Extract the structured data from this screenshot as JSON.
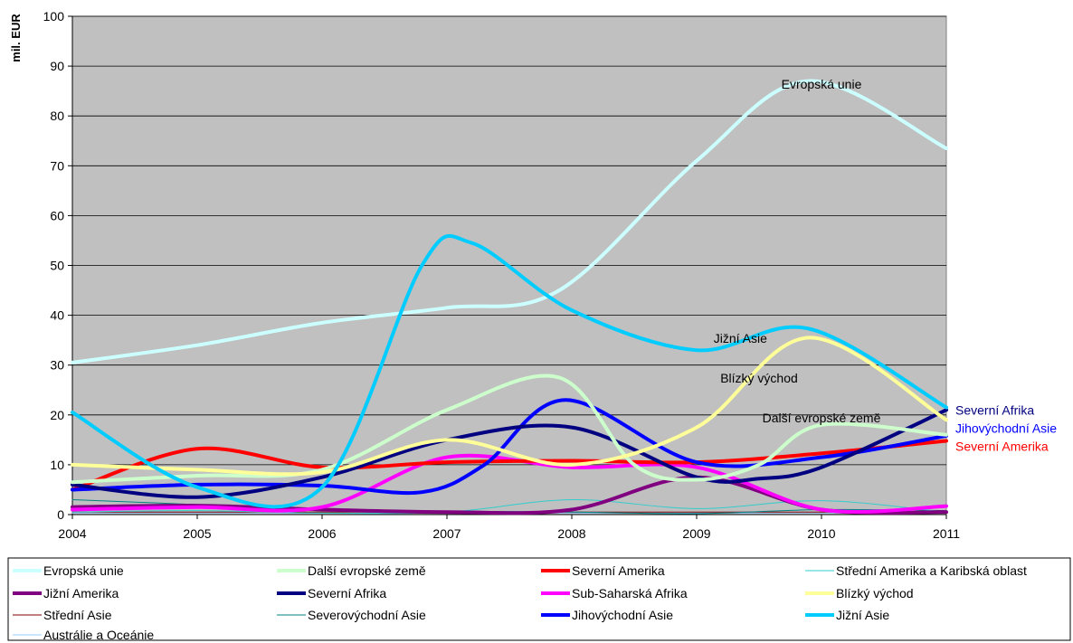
{
  "chart_data": {
    "type": "line",
    "title": "",
    "xlabel": "",
    "ylabel": "mil. EUR",
    "x": [
      "2004",
      "2005",
      "2006",
      "2007",
      "2008",
      "2009",
      "2010",
      "2011"
    ],
    "yticks": [
      "0",
      "10",
      "20",
      "30",
      "40",
      "50",
      "60",
      "70",
      "80",
      "90",
      "100"
    ],
    "ylim": [
      0,
      100
    ],
    "xlim": [
      2004,
      2011
    ],
    "grid": "horizontal",
    "legend_position": "bottom",
    "background_color": "#C0C0C0",
    "series": [
      {
        "name": "Evropská unie",
        "color": "#CCFFFF",
        "width": 4,
        "points": [
          [
            2004,
            30.5
          ],
          [
            2005,
            34
          ],
          [
            2006,
            38.5
          ],
          [
            2007,
            41.5
          ],
          [
            2007.9,
            45
          ],
          [
            2009,
            71
          ],
          [
            2009.9,
            87
          ],
          [
            2011,
            73.5
          ]
        ]
      },
      {
        "name": "Další evropské země",
        "color": "#CCFFCC",
        "width": 4,
        "points": [
          [
            2004,
            6.5
          ],
          [
            2005,
            7.8
          ],
          [
            2006,
            9
          ],
          [
            2007,
            21
          ],
          [
            2007.9,
            27.5
          ],
          [
            2008.5,
            10
          ],
          [
            2009,
            7
          ],
          [
            2009.5,
            10
          ],
          [
            2010,
            18
          ],
          [
            2011,
            16
          ]
        ]
      },
      {
        "name": "Severní Amerika",
        "color": "#FF0000",
        "width": 4,
        "points": [
          [
            2004,
            5
          ],
          [
            2005,
            13.2
          ],
          [
            2006,
            9.5
          ],
          [
            2007,
            10.5
          ],
          [
            2008,
            10.8
          ],
          [
            2009,
            10.5
          ],
          [
            2010,
            12.3
          ],
          [
            2011,
            14.8
          ]
        ]
      },
      {
        "name": "Střední Amerika a Karibská oblast",
        "color": "#33CCCC",
        "width": 1,
        "points": [
          [
            2004,
            0.5
          ],
          [
            2005,
            0.8
          ],
          [
            2006,
            0.3
          ],
          [
            2007,
            0.5
          ],
          [
            2008,
            3
          ],
          [
            2009,
            1.2
          ],
          [
            2010,
            2.8
          ],
          [
            2011,
            0.5
          ]
        ]
      },
      {
        "name": "Jižní Amerika",
        "color": "#800080",
        "width": 4,
        "points": [
          [
            2004,
            1.5
          ],
          [
            2005,
            1.8
          ],
          [
            2006,
            1
          ],
          [
            2007,
            0.5
          ],
          [
            2008,
            1
          ],
          [
            2009,
            7.5
          ],
          [
            2010,
            1
          ],
          [
            2011,
            0.5
          ]
        ]
      },
      {
        "name": "Severní Afrika",
        "color": "#000080",
        "width": 4,
        "points": [
          [
            2004,
            6
          ],
          [
            2005,
            3.5
          ],
          [
            2006,
            7.5
          ],
          [
            2007,
            15
          ],
          [
            2008,
            17.5
          ],
          [
            2009,
            7.5
          ],
          [
            2009.5,
            7.2
          ],
          [
            2010,
            9.5
          ],
          [
            2011,
            21
          ]
        ]
      },
      {
        "name": "Sub-Saharská Afrika",
        "color": "#FF00FF",
        "width": 4,
        "points": [
          [
            2004,
            1
          ],
          [
            2005,
            1.5
          ],
          [
            2006,
            1.5
          ],
          [
            2007,
            11.5
          ],
          [
            2008,
            9.5
          ],
          [
            2009,
            9.5
          ],
          [
            2010,
            1
          ],
          [
            2011,
            1.7
          ]
        ]
      },
      {
        "name": "Blízký východ",
        "color": "#FFFF99",
        "width": 4,
        "points": [
          [
            2004,
            10
          ],
          [
            2005,
            9
          ],
          [
            2006,
            8.5
          ],
          [
            2007,
            15
          ],
          [
            2008,
            10
          ],
          [
            2009,
            17.5
          ],
          [
            2009.9,
            35.5
          ],
          [
            2011,
            19
          ]
        ]
      },
      {
        "name": "Střední Asie",
        "color": "#800000",
        "width": 1,
        "points": [
          [
            2004,
            0.5
          ],
          [
            2005,
            0.5
          ],
          [
            2006,
            0.5
          ],
          [
            2007,
            0.5
          ],
          [
            2008,
            0.5
          ],
          [
            2009,
            0.5
          ],
          [
            2010,
            0.5
          ],
          [
            2011,
            0.5
          ]
        ]
      },
      {
        "name": "Severovýchodní Asie",
        "color": "#008080",
        "width": 1,
        "points": [
          [
            2004,
            3
          ],
          [
            2005,
            2
          ],
          [
            2006,
            1
          ],
          [
            2007,
            0.7
          ],
          [
            2008,
            0.5
          ],
          [
            2009,
            0.2
          ],
          [
            2010,
            1
          ],
          [
            2011,
            0.8
          ]
        ]
      },
      {
        "name": "Jihovýchodní Asie",
        "color": "#0000FF",
        "width": 4,
        "points": [
          [
            2004,
            5
          ],
          [
            2005,
            6
          ],
          [
            2006,
            5.8
          ],
          [
            2006.8,
            4.5
          ],
          [
            2007.3,
            10
          ],
          [
            2007.95,
            23
          ],
          [
            2009,
            10.5
          ],
          [
            2010,
            11.5
          ],
          [
            2011,
            15.8
          ]
        ]
      },
      {
        "name": "Jižní Asie",
        "color": "#00CCFF",
        "width": 4,
        "points": [
          [
            2004,
            20.5
          ],
          [
            2005,
            5.5
          ],
          [
            2006,
            5.5
          ],
          [
            2006.8,
            50
          ],
          [
            2007.2,
            54.5
          ],
          [
            2008,
            41
          ],
          [
            2009,
            33
          ],
          [
            2009.9,
            37.3
          ],
          [
            2011,
            21.5
          ]
        ]
      },
      {
        "name": "Austrálie a Oceánie",
        "color": "#99CCFF",
        "width": 1,
        "points": [
          [
            2004,
            0.3
          ],
          [
            2005,
            0.3
          ],
          [
            2006,
            0.3
          ],
          [
            2007,
            0.3
          ],
          [
            2008,
            0.3
          ],
          [
            2009,
            0.3
          ],
          [
            2010,
            0.3
          ],
          [
            2011,
            0.3
          ]
        ]
      }
    ],
    "annotations": [
      {
        "text": "Evropská unie",
        "x": 2010.0,
        "y": 85.5,
        "color": "#000000",
        "anchor": "middle"
      },
      {
        "text": "Jižní Asie",
        "x": 2009.35,
        "y": 34.5,
        "color": "#000000",
        "anchor": "middle"
      },
      {
        "text": "Blízký východ",
        "x": 2009.5,
        "y": 26.5,
        "color": "#000000",
        "anchor": "middle"
      },
      {
        "text": "Další evropské země",
        "x": 2010.0,
        "y": 18.5,
        "color": "#000000",
        "anchor": "middle"
      }
    ],
    "end_labels": [
      {
        "text": "Severní Afrika",
        "y": 21,
        "color": "#000080"
      },
      {
        "text": "Jihovýchodní Asie",
        "y": 17.3,
        "color": "#0000FF"
      },
      {
        "text": "Severní Amerika",
        "y": 13.7,
        "color": "#FF0000"
      }
    ]
  }
}
